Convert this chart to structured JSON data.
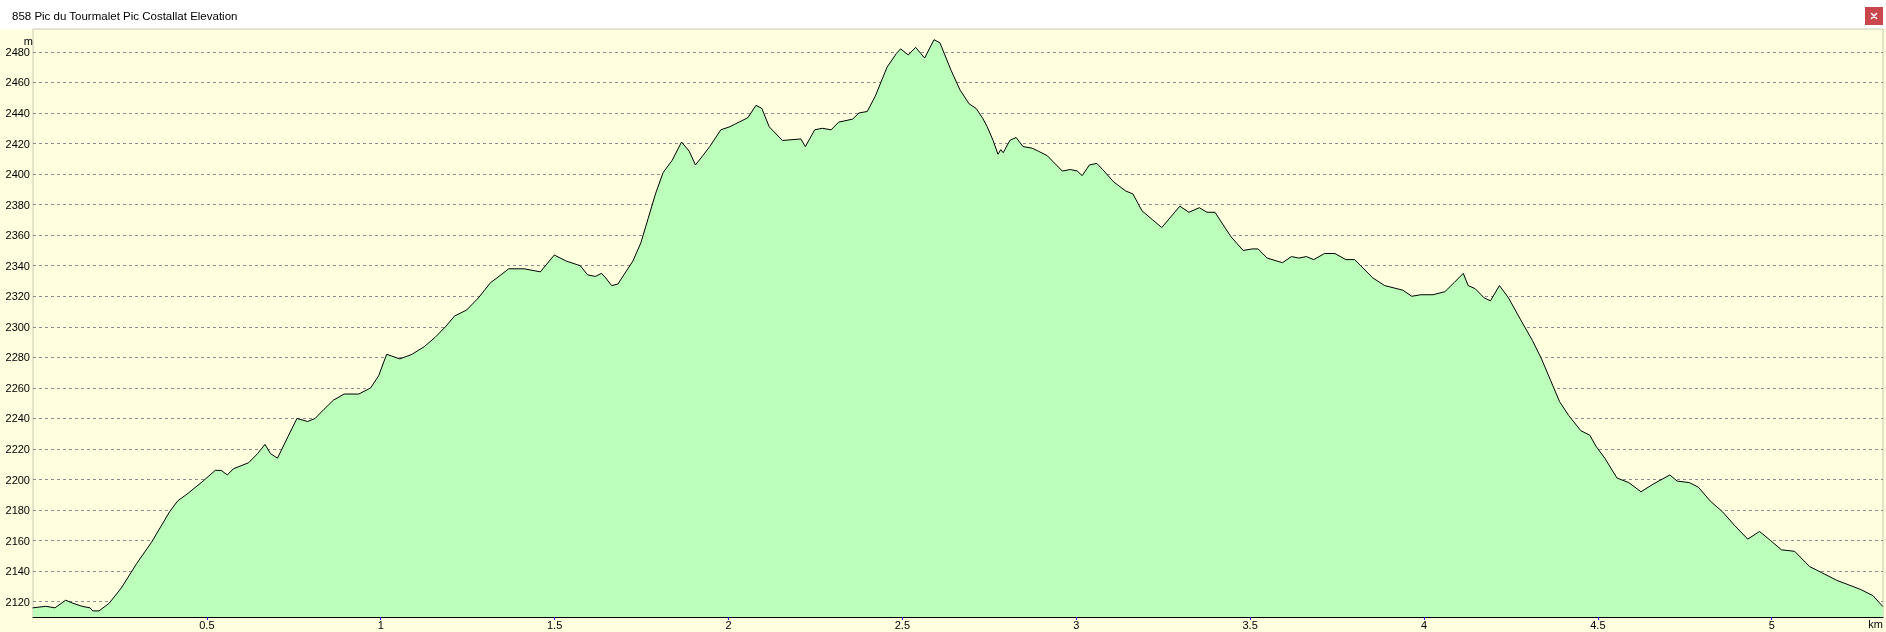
{
  "chart_data": {
    "type": "area",
    "title": "858 Pic du Tourmalet Pic Costallat Elevation",
    "xlabel": "km",
    "ylabel": "m",
    "color": "#bbffbb",
    "marker": "none",
    "line_style": "solid",
    "grid": "y",
    "xlim": [
      0,
      5.32
    ],
    "ylim": [
      2110,
      2495
    ],
    "xticks": [
      0.5,
      1,
      1.5,
      2,
      2.5,
      3,
      3.5,
      4,
      4.5,
      5
    ],
    "yticks": [
      2120,
      2140,
      2160,
      2180,
      2200,
      2220,
      2240,
      2260,
      2280,
      2300,
      2320,
      2340,
      2360,
      2380,
      2400,
      2420,
      2440,
      2460,
      2480
    ],
    "x": [
      0.0,
      0.037,
      0.063,
      0.094,
      0.115,
      0.141,
      0.164,
      0.172,
      0.19,
      0.219,
      0.254,
      0.298,
      0.341,
      0.393,
      0.416,
      0.446,
      0.489,
      0.524,
      0.541,
      0.559,
      0.576,
      0.62,
      0.646,
      0.667,
      0.683,
      0.703,
      0.733,
      0.759,
      0.79,
      0.811,
      0.837,
      0.864,
      0.895,
      0.937,
      0.971,
      0.994,
      1.017,
      1.055,
      1.09,
      1.125,
      1.156,
      1.186,
      1.212,
      1.247,
      1.281,
      1.316,
      1.334,
      1.368,
      1.412,
      1.459,
      1.499,
      1.534,
      1.574,
      1.595,
      1.617,
      1.635,
      1.647,
      1.664,
      1.682,
      1.699,
      1.725,
      1.748,
      1.769,
      1.79,
      1.812,
      1.838,
      1.865,
      1.887,
      1.905,
      1.926,
      1.946,
      1.978,
      2.004,
      2.021,
      2.039,
      2.056,
      2.079,
      2.096,
      2.117,
      2.155,
      2.208,
      2.221,
      2.248,
      2.27,
      2.295,
      2.317,
      2.357,
      2.375,
      2.399,
      2.422,
      2.456,
      2.483,
      2.495,
      2.517,
      2.538,
      2.564,
      2.591,
      2.608,
      2.64,
      2.666,
      2.692,
      2.712,
      2.73,
      2.744,
      2.761,
      2.775,
      2.783,
      2.79,
      2.809,
      2.827,
      2.847,
      2.873,
      2.891,
      2.917,
      2.934,
      2.96,
      2.983,
      3.003,
      3.017,
      3.038,
      3.059,
      3.076,
      3.107,
      3.142,
      3.163,
      3.189,
      3.22,
      3.246,
      3.272,
      3.298,
      3.324,
      3.354,
      3.376,
      3.399,
      3.419,
      3.445,
      3.48,
      3.506,
      3.523,
      3.549,
      3.593,
      3.619,
      3.64,
      3.662,
      3.683,
      3.714,
      3.744,
      3.775,
      3.801,
      3.818,
      3.853,
      3.887,
      3.939,
      3.965,
      3.991,
      4.026,
      4.06,
      4.087,
      4.113,
      4.127,
      4.147,
      4.173,
      4.191,
      4.217,
      4.243,
      4.277,
      4.312,
      4.338,
      4.364,
      4.39,
      4.416,
      4.451,
      4.477,
      4.494,
      4.52,
      4.555,
      4.589,
      4.624,
      4.659,
      4.707,
      4.728,
      4.763,
      4.789,
      4.823,
      4.858,
      4.893,
      4.931,
      4.965,
      4.997,
      5.028,
      5.066,
      5.109,
      5.144,
      5.187,
      5.222,
      5.256,
      5.291,
      5.319
    ],
    "values": [
      2116,
      2117,
      2116,
      2121,
      2119,
      2117,
      2116,
      2114,
      2114,
      2119,
      2129,
      2145,
      2159,
      2179,
      2186,
      2191,
      2199,
      2206,
      2206,
      2203,
      2207,
      2211,
      2217,
      2223,
      2217,
      2214,
      2228,
      2240,
      2238,
      2240,
      2246,
      2252,
      2256,
      2256,
      2260,
      2268,
      2282,
      2279,
      2282,
      2287,
      2293,
      2300,
      2307,
      2311,
      2319,
      2329,
      2332,
      2338,
      2338,
      2336,
      2347,
      2343,
      2340,
      2334,
      2333,
      2335,
      2332,
      2327,
      2328,
      2334,
      2343,
      2355,
      2371,
      2387,
      2401,
      2409,
      2421,
      2415,
      2406,
      2412,
      2418,
      2429,
      2431,
      2433,
      2435,
      2437,
      2445,
      2443,
      2431,
      2422,
      2423,
      2418,
      2429,
      2430,
      2429,
      2434,
      2436,
      2440,
      2441,
      2451,
      2470,
      2479,
      2482,
      2478,
      2483,
      2476,
      2488,
      2486,
      2468,
      2455,
      2446,
      2443,
      2437,
      2431,
      2422,
      2413,
      2416,
      2414,
      2422,
      2424,
      2418,
      2417,
      2415,
      2412,
      2408,
      2402,
      2403,
      2402,
      2399,
      2406,
      2407,
      2403,
      2395,
      2389,
      2387,
      2376,
      2370,
      2365,
      2372,
      2379,
      2375,
      2378,
      2375,
      2375,
      2368,
      2359,
      2350,
      2351,
      2351,
      2345,
      2342,
      2346,
      2345,
      2346,
      2344,
      2348,
      2348,
      2344,
      2344,
      2340,
      2332,
      2327,
      2324,
      2320,
      2321,
      2321,
      2323,
      2329,
      2335,
      2327,
      2325,
      2319,
      2317,
      2327,
      2319,
      2305,
      2291,
      2279,
      2265,
      2251,
      2242,
      2232,
      2229,
      2222,
      2214,
      2201,
      2198,
      2192,
      2197,
      2203,
      2199,
      2198,
      2195,
      2186,
      2179,
      2170,
      2161,
      2166,
      2160,
      2154,
      2153,
      2143,
      2139,
      2134,
      2131,
      2128,
      2124,
      2117
    ]
  }
}
